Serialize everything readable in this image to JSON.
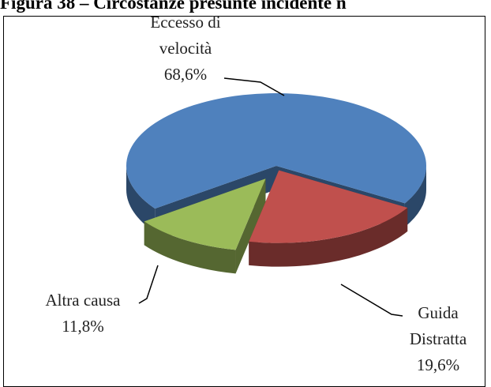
{
  "chart_data": {
    "type": "pie3d",
    "title": "Figura 38 – Circostanze presunte incidente n",
    "categories": [
      "Eccesso di velocità",
      "Guida Distratta",
      "Altra causa"
    ],
    "values": [
      68.6,
      19.6,
      11.8
    ],
    "value_labels": [
      "68,6%",
      "19,6%",
      "11,8%"
    ],
    "colors": [
      "#4f81bd",
      "#c0504d",
      "#9bbb59"
    ]
  }
}
